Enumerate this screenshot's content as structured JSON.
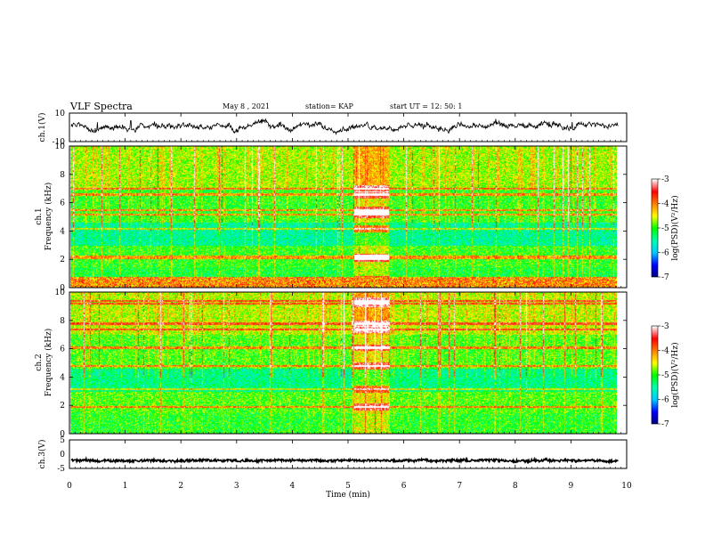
{
  "header": {
    "title": "VLF Spectra",
    "date": "May 8 , 2021",
    "station": "station= KAP",
    "start_ut": "start UT = 12: 50: 1"
  },
  "chart_data": [
    {
      "type": "line",
      "panel": "ch1-waveform",
      "ylabel": "ch.1(V)",
      "ylim": [
        -10,
        10
      ],
      "yticks": [
        "10",
        "-10"
      ],
      "x_range": [
        0,
        10
      ],
      "x_end_data": 9.85,
      "series": [
        {
          "values_approx_mean": 0.5,
          "values_approx_amplitude": 6
        }
      ]
    },
    {
      "type": "heatmap",
      "panel": "ch1-spectrogram",
      "ylabel": "ch.1",
      "ylabel2": "Frequency (kHz)",
      "ylim": [
        0,
        10
      ],
      "yticks": [
        "0",
        "2",
        "4",
        "6",
        "8",
        "10"
      ],
      "xlim": [
        0,
        10
      ],
      "x_end_data": 9.85,
      "bright_block_min": [
        5.1,
        5.7
      ],
      "bright_lines_khz": [
        0.3,
        0.6,
        2.1,
        2.2,
        4.2,
        5.2,
        5.5,
        6.6,
        7.0
      ],
      "colorbar": {
        "label": "log(PSD)(V²/Hz)",
        "range": [
          -7,
          -3
        ],
        "ticks": [
          "-3",
          "-4",
          "-5",
          "-6",
          "-7"
        ]
      }
    },
    {
      "type": "heatmap",
      "panel": "ch2-spectrogram",
      "ylabel": "ch.2",
      "ylabel2": "Frequency (kHz)",
      "ylim": [
        0,
        10
      ],
      "yticks": [
        "0",
        "2",
        "4",
        "6",
        "8",
        "10"
      ],
      "xlim": [
        0,
        10
      ],
      "x_end_data": 9.85,
      "bright_block_min": [
        5.1,
        5.7
      ],
      "bright_lines_khz": [
        1.9,
        3.2,
        4.8,
        6.1,
        7.4,
        7.8,
        9.2,
        9.4
      ],
      "colorbar": {
        "label": "log(PSD)(V²/Hz)",
        "range": [
          -7,
          -3
        ],
        "ticks": [
          "-3",
          "-4",
          "-5",
          "-6",
          "-7"
        ]
      }
    },
    {
      "type": "line",
      "panel": "ch3-waveform",
      "ylabel": "ch.3(V)",
      "ylim": [
        -5,
        5
      ],
      "yticks": [
        "5",
        "0",
        "-5"
      ],
      "x_range": [
        0,
        10
      ],
      "x_end_data": 9.85,
      "series": [
        {
          "values_approx_mean": -2.2,
          "values_approx_amplitude": 0.6
        }
      ]
    }
  ],
  "xaxis": {
    "label": "Time (min)",
    "ticks": [
      "0",
      "1",
      "2",
      "3",
      "4",
      "5",
      "6",
      "7",
      "8",
      "9",
      "10"
    ]
  },
  "colors": {
    "colormap": [
      "#00007a",
      "#0000ff",
      "#00c8ff",
      "#00ffb0",
      "#00ff00",
      "#ffff00",
      "#ff8000",
      "#ff0000",
      "#ffffff"
    ],
    "trace": "#000000"
  }
}
